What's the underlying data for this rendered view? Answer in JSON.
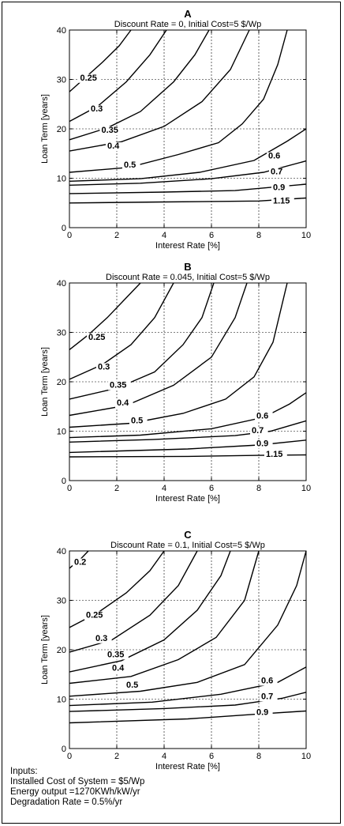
{
  "chart_data": [
    {
      "type": "contour",
      "title": "A",
      "subtitle": "Discount Rate = 0, Initial Cost=5 $/Wp",
      "xlabel": "Interest Rate [%]",
      "ylabel": "Loan Term [years]",
      "xlim": [
        0,
        10
      ],
      "ylim": [
        0,
        40
      ],
      "xticks": [
        0,
        2,
        4,
        6,
        8,
        10
      ],
      "yticks": [
        0,
        10,
        20,
        30,
        40
      ],
      "grid": true,
      "contours": [
        {
          "level": "0.25",
          "points": [
            [
              0,
              27.5
            ],
            [
              0.7,
              30.5
            ],
            [
              1.4,
              33.5
            ],
            [
              2.1,
              36.8
            ],
            [
              2.6,
              40
            ]
          ],
          "label_at": [
            0.45,
            29.8
          ]
        },
        {
          "level": "0.3",
          "points": [
            [
              0,
              21.5
            ],
            [
              1.2,
              24.6
            ],
            [
              2.4,
              29.5
            ],
            [
              3.4,
              35
            ],
            [
              4.1,
              40
            ]
          ],
          "label_at": [
            0.9,
            23.5
          ]
        },
        {
          "level": "0.35",
          "points": [
            [
              0,
              17.8
            ],
            [
              1.6,
              20.2
            ],
            [
              3.0,
              23.5
            ],
            [
              4.4,
              29.5
            ],
            [
              5.3,
              35
            ],
            [
              5.9,
              40
            ]
          ],
          "label_at": [
            1.35,
            19.2
          ]
        },
        {
          "level": "0.4",
          "points": [
            [
              0,
              15.5
            ],
            [
              2.2,
              17.4
            ],
            [
              4.0,
              20.5
            ],
            [
              5.6,
              25.5
            ],
            [
              6.8,
              32
            ],
            [
              7.6,
              40
            ]
          ],
          "label_at": [
            1.6,
            16
          ]
        },
        {
          "level": "0.5",
          "points": [
            [
              0,
              11.2
            ],
            [
              2.5,
              12.2
            ],
            [
              4.6,
              14.8
            ],
            [
              6.3,
              17.2
            ],
            [
              7.3,
              21
            ],
            [
              8.2,
              26
            ],
            [
              8.8,
              33
            ],
            [
              9.2,
              40
            ]
          ],
          "label_at": [
            2.3,
            12.2
          ]
        },
        {
          "level": "0.6",
          "points": [
            [
              0,
              9.4
            ],
            [
              3,
              9.9
            ],
            [
              5.5,
              11.2
            ],
            [
              7.8,
              13.6
            ],
            [
              9.2,
              17.5
            ],
            [
              10,
              20
            ]
          ],
          "label_at": [
            8.4,
            14
          ]
        },
        {
          "level": "0.7",
          "points": [
            [
              0,
              8.6
            ],
            [
              3,
              9.0
            ],
            [
              6,
              9.9
            ],
            [
              8.2,
              11.2
            ],
            [
              10,
              13.5
            ]
          ],
          "label_at": [
            8.5,
            10.8
          ]
        },
        {
          "level": "0.9",
          "points": [
            [
              0,
              6.9
            ],
            [
              4,
              7.2
            ],
            [
              7,
              7.5
            ],
            [
              10,
              8.8
            ]
          ],
          "label_at": [
            8.6,
            7.6
          ]
        },
        {
          "level": "1.15",
          "points": [
            [
              0,
              5.0
            ],
            [
              4,
              5.2
            ],
            [
              8,
              5.4
            ],
            [
              10,
              6.0
            ]
          ],
          "label_at": [
            8.6,
            4.9
          ]
        }
      ]
    },
    {
      "type": "contour",
      "title": "B",
      "subtitle": "Discount Rate = 0.045, Initial Cost=5 $/Wp",
      "xlabel": "Interest Rate [%]",
      "ylabel": "Loan Term [years]",
      "xlim": [
        0,
        10
      ],
      "ylim": [
        0,
        40
      ],
      "xticks": [
        0,
        2,
        4,
        6,
        8,
        10
      ],
      "yticks": [
        0,
        10,
        20,
        30,
        40
      ],
      "grid": true,
      "contours": [
        {
          "level": "0.25",
          "points": [
            [
              0,
              26.5
            ],
            [
              0.8,
              29.5
            ],
            [
              1.6,
              33
            ],
            [
              2.3,
              36.5
            ],
            [
              3.0,
              40
            ]
          ],
          "label_at": [
            0.8,
            28.5
          ]
        },
        {
          "level": "0.3",
          "points": [
            [
              0,
              20.5
            ],
            [
              1.4,
              23.5
            ],
            [
              2.6,
              27.5
            ],
            [
              3.6,
              33
            ],
            [
              4.4,
              40
            ]
          ],
          "label_at": [
            1.2,
            22.5
          ]
        },
        {
          "level": "0.35",
          "points": [
            [
              0,
              16.5
            ],
            [
              2.0,
              18.7
            ],
            [
              3.6,
              22
            ],
            [
              4.8,
              27.5
            ],
            [
              5.6,
              33
            ],
            [
              6.1,
              40
            ]
          ],
          "label_at": [
            1.7,
            18.8
          ]
        },
        {
          "level": "0.4",
          "points": [
            [
              0,
              13.2
            ],
            [
              2.4,
              15.2
            ],
            [
              4.4,
              19.3
            ],
            [
              6.0,
              25
            ],
            [
              7.0,
              33
            ],
            [
              7.5,
              40
            ]
          ],
          "label_at": [
            2.0,
            15.2
          ]
        },
        {
          "level": "0.5",
          "points": [
            [
              0,
              10.8
            ],
            [
              2.6,
              11.6
            ],
            [
              4.8,
              13.6
            ],
            [
              6.6,
              16.5
            ],
            [
              7.8,
              21
            ],
            [
              8.6,
              28
            ],
            [
              9.2,
              40
            ]
          ],
          "label_at": [
            2.6,
            11.6
          ]
        },
        {
          "level": "0.6",
          "points": [
            [
              0,
              8.7
            ],
            [
              3,
              9.2
            ],
            [
              6,
              10.5
            ],
            [
              8.2,
              12.8
            ],
            [
              9.3,
              15.5
            ],
            [
              10,
              17.8
            ]
          ],
          "label_at": [
            7.9,
            12.6
          ]
        },
        {
          "level": "0.7",
          "points": [
            [
              0,
              7.8
            ],
            [
              3.5,
              8.3
            ],
            [
              7,
              9.1
            ],
            [
              8.5,
              10.0
            ],
            [
              10,
              12.1
            ]
          ],
          "label_at": [
            7.7,
            9.6
          ]
        },
        {
          "level": "0.9",
          "points": [
            [
              0,
              5.7
            ],
            [
              5,
              6.4
            ],
            [
              8,
              7.2
            ],
            [
              10,
              8.2
            ]
          ],
          "label_at": [
            7.9,
            7.0
          ]
        },
        {
          "level": "1.15",
          "points": [
            [
              0,
              4.8
            ],
            [
              5,
              4.9
            ],
            [
              8,
              5.1
            ],
            [
              10,
              5.2
            ]
          ],
          "label_at": [
            8.3,
            4.8
          ]
        }
      ]
    },
    {
      "type": "contour",
      "title": "C",
      "subtitle": "Discount Rate = 0.1, Initial Cost=5 $/Wp",
      "xlabel": "Interest Rate [%]",
      "ylabel": "Loan Term [years]",
      "xlim": [
        0,
        10
      ],
      "ylim": [
        0,
        40
      ],
      "xticks": [
        0,
        2,
        4,
        6,
        8,
        10
      ],
      "yticks": [
        0,
        10,
        20,
        30,
        40
      ],
      "grid": true,
      "contours": [
        {
          "level": "0.2",
          "points": [
            [
              0,
              36.5
            ],
            [
              0.5,
              38.5
            ],
            [
              0.8,
              40
            ]
          ],
          "label_at": [
            0.2,
            37.2
          ]
        },
        {
          "level": "0.25",
          "points": [
            [
              0,
              24.5
            ],
            [
              1.2,
              27.5
            ],
            [
              2.4,
              31.5
            ],
            [
              3.4,
              36
            ],
            [
              4.0,
              40
            ]
          ],
          "label_at": [
            0.7,
            26.5
          ]
        },
        {
          "level": "0.3",
          "points": [
            [
              0,
              19.5
            ],
            [
              1.8,
              22
            ],
            [
              3.4,
              27
            ],
            [
              4.6,
              33
            ],
            [
              5.4,
              40
            ]
          ],
          "label_at": [
            1.1,
            21.8
          ]
        },
        {
          "level": "0.35",
          "points": [
            [
              0,
              15.5
            ],
            [
              2.2,
              17.8
            ],
            [
              4.0,
              22
            ],
            [
              5.4,
              28
            ],
            [
              6.4,
              35
            ],
            [
              6.8,
              40
            ]
          ],
          "label_at": [
            1.6,
            18.5
          ]
        },
        {
          "level": "0.4",
          "points": [
            [
              0,
              13.2
            ],
            [
              2.6,
              14.6
            ],
            [
              4.6,
              18
            ],
            [
              6.2,
              22.5
            ],
            [
              7.4,
              30
            ],
            [
              8.0,
              40
            ]
          ],
          "label_at": [
            1.8,
            15.8
          ]
        },
        {
          "level": "0.5",
          "points": [
            [
              0,
              10.6
            ],
            [
              3.0,
              11.6
            ],
            [
              5.4,
              13.4
            ],
            [
              7.4,
              17
            ],
            [
              8.8,
              25
            ],
            [
              9.6,
              33
            ],
            [
              10,
              40
            ]
          ],
          "label_at": [
            2.4,
            12.3
          ]
        },
        {
          "level": "0.6",
          "points": [
            [
              0,
              8.7
            ],
            [
              3.5,
              9.4
            ],
            [
              6.4,
              11
            ],
            [
              8.8,
              13.4
            ],
            [
              10,
              16.5
            ]
          ],
          "label_at": [
            8.1,
            13.2
          ]
        },
        {
          "level": "0.7",
          "points": [
            [
              0,
              7.5
            ],
            [
              4,
              8.1
            ],
            [
              7,
              8.8
            ],
            [
              9,
              10.2
            ],
            [
              10,
              11.4
            ]
          ],
          "label_at": [
            8.1,
            10.0
          ]
        },
        {
          "level": "0.9",
          "points": [
            [
              0,
              5.2
            ],
            [
              5,
              6.0
            ],
            [
              8,
              7.0
            ],
            [
              10,
              7.6
            ]
          ],
          "label_at": [
            7.9,
            6.8
          ]
        }
      ]
    }
  ],
  "notes": [
    "Inputs:",
    "Installed Cost of System = $5/Wp",
    "Energy output =1270KWh/kW/yr",
    "Degradation Rate = 0.5%/yr"
  ]
}
